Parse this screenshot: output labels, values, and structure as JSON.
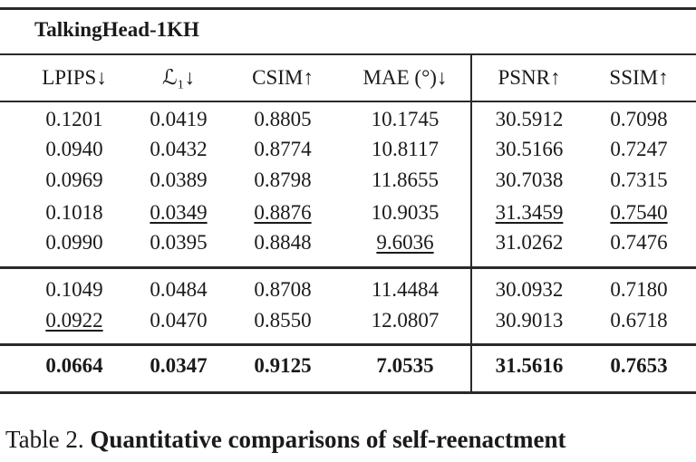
{
  "dataset": "TalkingHead-1KH",
  "headers": [
    "LPIPS↓",
    "ℒ₁↓",
    "CSIM↑",
    "MAE (°)↓",
    "PSNR↑",
    "SSIM↑"
  ],
  "group1": [
    [
      "0.1201",
      "0.0419",
      "0.8805",
      "10.1745",
      "30.5912",
      "0.7098"
    ],
    [
      "0.0940",
      "0.0432",
      "0.8774",
      "10.8117",
      "30.5166",
      "0.7247"
    ],
    [
      "0.0969",
      "0.0389",
      "0.8798",
      "11.8655",
      "30.7038",
      "0.7315"
    ],
    [
      "0.1018",
      "0.0349",
      "0.8876",
      "10.9035",
      "31.3459",
      "0.7540"
    ],
    [
      "0.0990",
      "0.0395",
      "0.8848",
      "9.6036",
      "31.0262",
      "0.7476"
    ]
  ],
  "group2": [
    [
      "0.1049",
      "0.0484",
      "0.8708",
      "11.4484",
      "30.0932",
      "0.7180"
    ],
    [
      "0.0922",
      "0.0470",
      "0.8550",
      "12.0807",
      "30.9013",
      "0.6718"
    ]
  ],
  "ours": [
    "0.0664",
    "0.0347",
    "0.9125",
    "7.0535",
    "31.5616",
    "0.7653"
  ],
  "caption": {
    "label": "Table 2.",
    "text": "Quantitative comparisons of self-reenactment"
  }
}
